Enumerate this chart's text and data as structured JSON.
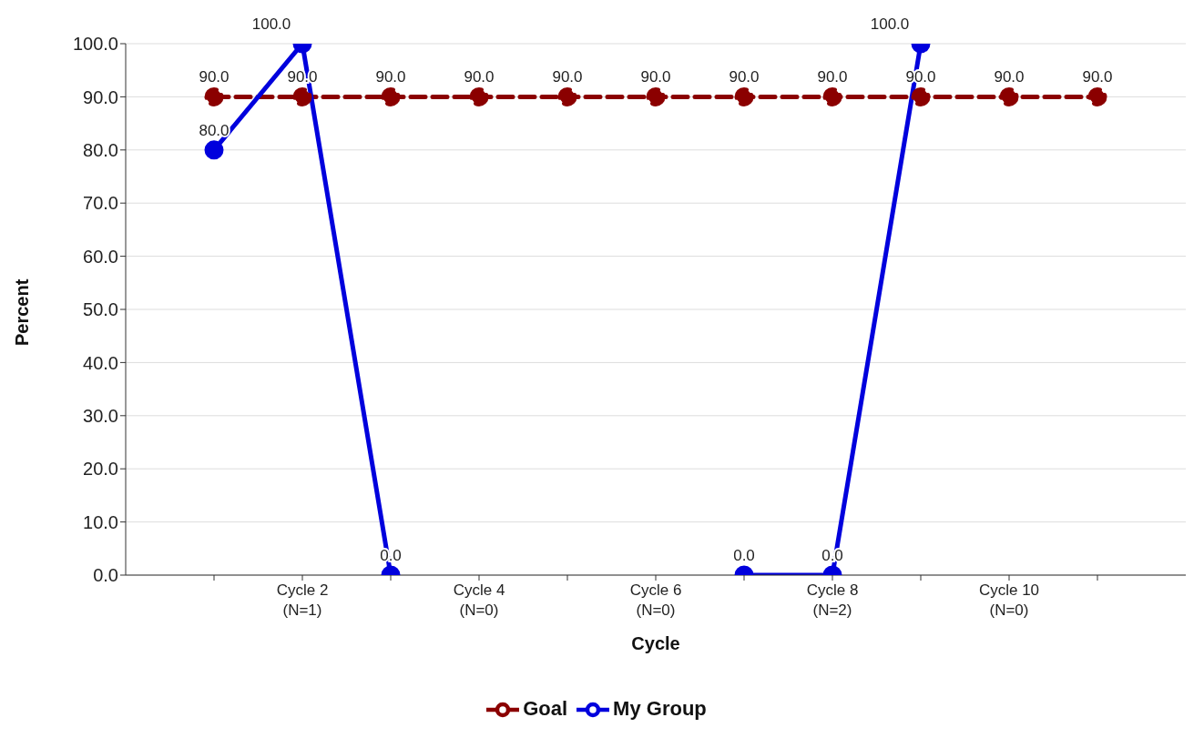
{
  "chart_data": {
    "type": "line",
    "xlabel": "Cycle",
    "ylabel": "Percent",
    "categories": [
      null,
      "Cycle 2\n(N=1)",
      null,
      "Cycle 4\n(N=0)",
      null,
      "Cycle 6\n(N=0)",
      null,
      "Cycle 8\n(N=2)",
      null,
      "Cycle 10\n(N=0)",
      null
    ],
    "series": [
      {
        "name": "Goal",
        "color": "#8b0000",
        "line_style": "dashed",
        "values": [
          90,
          90,
          90,
          90,
          90,
          90,
          90,
          90,
          90,
          90,
          90
        ],
        "value_labels": [
          "90.0",
          "90.0",
          "90.0",
          "90.0",
          "90.0",
          "90.0",
          "90.0",
          "90.0",
          "90.0",
          "90.0",
          "90.0"
        ]
      },
      {
        "name": "My Group",
        "color": "#0000dd",
        "line_style": "solid",
        "values": [
          80,
          100,
          0,
          null,
          null,
          null,
          0,
          0,
          100,
          null,
          null
        ],
        "value_labels": [
          "80.0",
          "100.0",
          "0.0",
          null,
          null,
          null,
          "0.0",
          "0.0",
          "100.0",
          null,
          null
        ]
      }
    ],
    "ylim": [
      0,
      100
    ],
    "yticks": [
      {
        "value": 0,
        "label": "0.0"
      },
      {
        "value": 10,
        "label": "10.0"
      },
      {
        "value": 20,
        "label": "20.0"
      },
      {
        "value": 30,
        "label": "30.0"
      },
      {
        "value": 40,
        "label": "40.0"
      },
      {
        "value": 50,
        "label": "50.0"
      },
      {
        "value": 60,
        "label": "60.0"
      },
      {
        "value": 70,
        "label": "70.0"
      },
      {
        "value": 80,
        "label": "80.0"
      },
      {
        "value": 90,
        "label": "90.0"
      },
      {
        "value": 100,
        "label": "100.0"
      }
    ],
    "grid": "y",
    "legend": "bottom",
    "marker": "circle"
  }
}
